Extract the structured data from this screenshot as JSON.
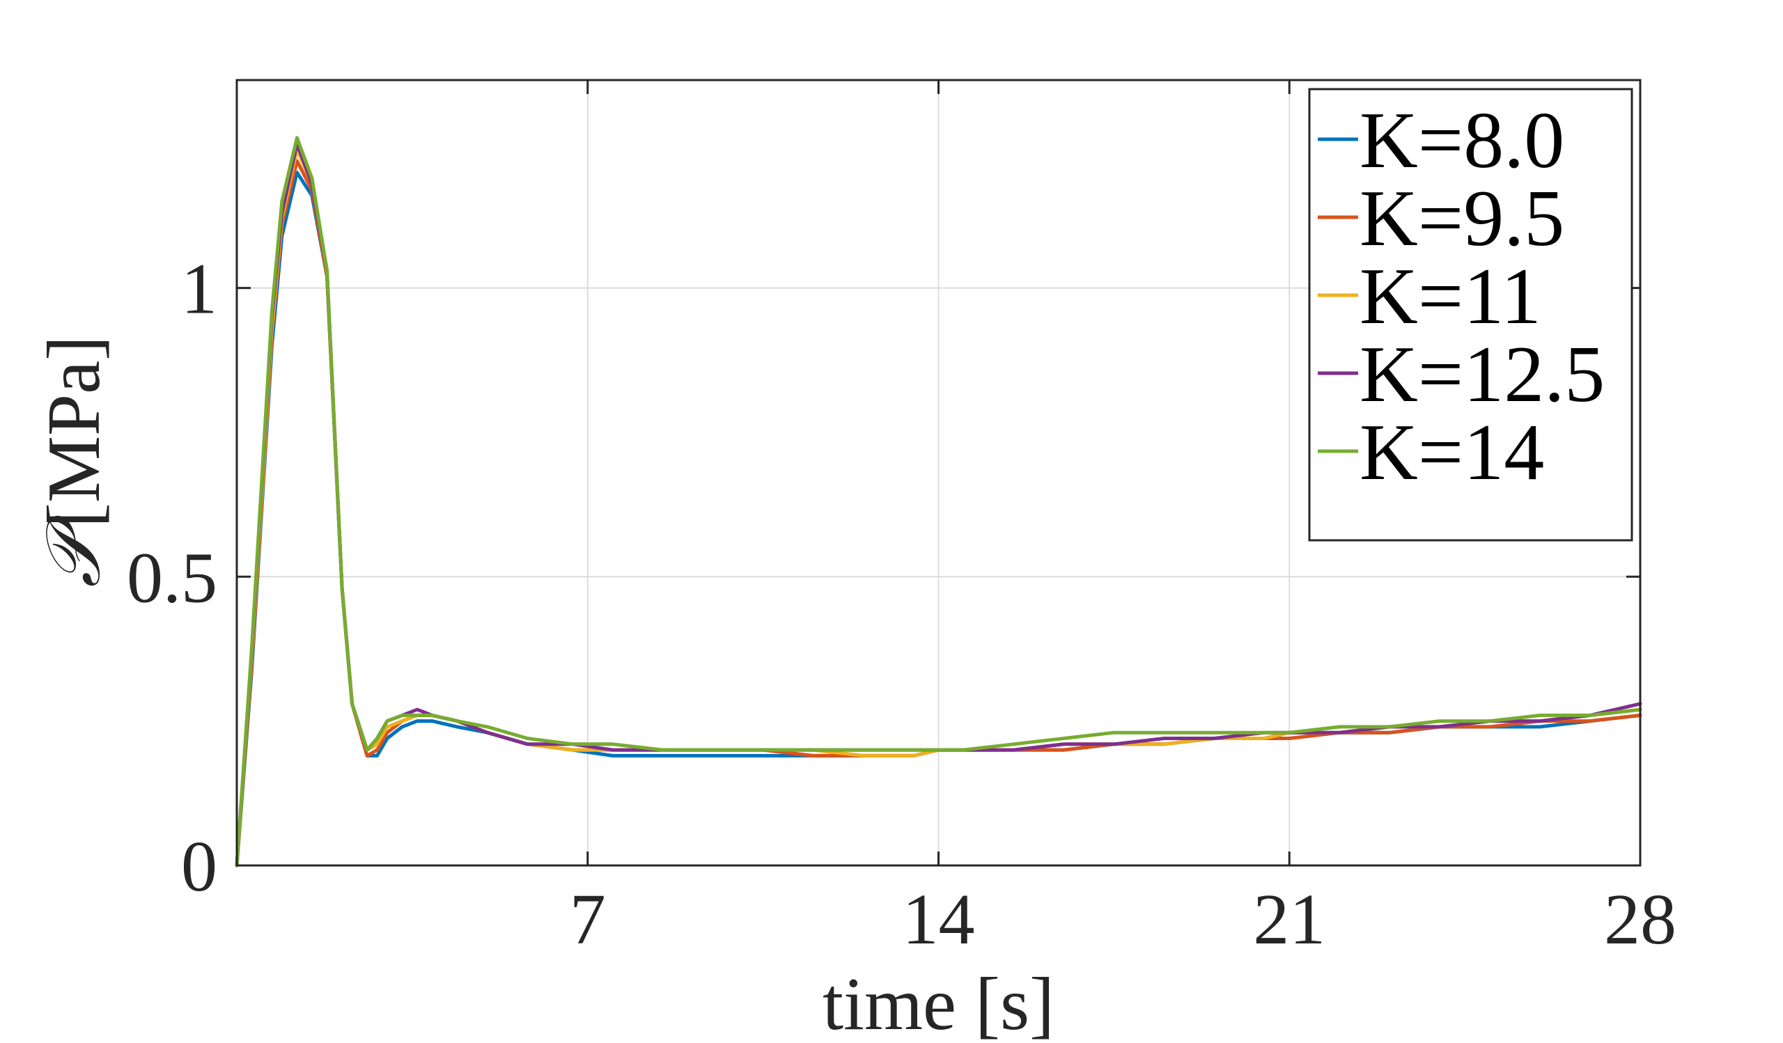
{
  "chart_data": {
    "type": "line",
    "title": "",
    "xlabel": "time [s]",
    "ylabel_symbol": "𝒫",
    "ylabel_unit": "[MPa]",
    "xlim": [
      0,
      28
    ],
    "ylim": [
      0,
      1.36
    ],
    "xticks": [
      7,
      14,
      21,
      28
    ],
    "xtick_labels": [
      "7",
      "14",
      "21",
      "28"
    ],
    "yticks": [
      0,
      0.5,
      1
    ],
    "ytick_labels": [
      "0",
      "0.5",
      "1"
    ],
    "grid": true,
    "legend_position": "top-right",
    "x": [
      0,
      0.3,
      0.5,
      0.7,
      0.9,
      1.2,
      1.5,
      1.8,
      2.1,
      2.3,
      2.6,
      2.8,
      3.0,
      3.3,
      3.6,
      3.9,
      4.4,
      5.0,
      5.8,
      6.7,
      7.5,
      8.5,
      9.5,
      10.5,
      11.5,
      12.5,
      13.5,
      14.0,
      14.5,
      15.5,
      16.5,
      17.5,
      18.5,
      19.5,
      20.5,
      21.0,
      22.0,
      23.0,
      24.0,
      25.0,
      26.0,
      27.0,
      28.0
    ],
    "series": [
      {
        "name": "K=8.0",
        "color": "#0072BD",
        "values": [
          0,
          0.34,
          0.62,
          0.9,
          1.09,
          1.2,
          1.16,
          1.02,
          0.48,
          0.28,
          0.19,
          0.19,
          0.22,
          0.24,
          0.25,
          0.25,
          0.24,
          0.23,
          0.21,
          0.2,
          0.19,
          0.19,
          0.19,
          0.19,
          0.19,
          0.19,
          0.19,
          0.2,
          0.2,
          0.2,
          0.2,
          0.21,
          0.21,
          0.22,
          0.22,
          0.23,
          0.23,
          0.23,
          0.24,
          0.24,
          0.24,
          0.25,
          0.26
        ]
      },
      {
        "name": "K=9.5",
        "color": "#D95319",
        "values": [
          0,
          0.35,
          0.63,
          0.92,
          1.11,
          1.22,
          1.17,
          1.02,
          0.48,
          0.28,
          0.19,
          0.2,
          0.23,
          0.25,
          0.26,
          0.26,
          0.25,
          0.23,
          0.21,
          0.2,
          0.2,
          0.2,
          0.2,
          0.2,
          0.19,
          0.19,
          0.19,
          0.2,
          0.2,
          0.2,
          0.2,
          0.21,
          0.21,
          0.22,
          0.22,
          0.22,
          0.23,
          0.23,
          0.24,
          0.24,
          0.25,
          0.25,
          0.26
        ]
      },
      {
        "name": "K=11",
        "color": "#EDB120",
        "values": [
          0,
          0.36,
          0.64,
          0.93,
          1.12,
          1.24,
          1.18,
          1.03,
          0.48,
          0.28,
          0.2,
          0.21,
          0.24,
          0.25,
          0.26,
          0.26,
          0.25,
          0.23,
          0.21,
          0.2,
          0.2,
          0.2,
          0.2,
          0.2,
          0.2,
          0.19,
          0.19,
          0.2,
          0.2,
          0.2,
          0.21,
          0.21,
          0.21,
          0.22,
          0.22,
          0.23,
          0.23,
          0.24,
          0.24,
          0.25,
          0.25,
          0.26,
          0.27
        ]
      },
      {
        "name": "K=12.5",
        "color": "#7E2F8E",
        "values": [
          0,
          0.37,
          0.66,
          0.95,
          1.13,
          1.25,
          1.18,
          1.03,
          0.48,
          0.28,
          0.2,
          0.22,
          0.25,
          0.26,
          0.27,
          0.26,
          0.25,
          0.23,
          0.21,
          0.21,
          0.2,
          0.2,
          0.2,
          0.2,
          0.2,
          0.2,
          0.2,
          0.2,
          0.2,
          0.2,
          0.21,
          0.21,
          0.22,
          0.22,
          0.23,
          0.23,
          0.23,
          0.24,
          0.24,
          0.25,
          0.25,
          0.26,
          0.28
        ]
      },
      {
        "name": "K=14",
        "color": "#77AC30",
        "values": [
          0,
          0.38,
          0.67,
          0.96,
          1.15,
          1.26,
          1.19,
          1.03,
          0.48,
          0.28,
          0.2,
          0.22,
          0.25,
          0.26,
          0.26,
          0.26,
          0.25,
          0.24,
          0.22,
          0.21,
          0.21,
          0.2,
          0.2,
          0.2,
          0.2,
          0.2,
          0.2,
          0.2,
          0.2,
          0.21,
          0.22,
          0.23,
          0.23,
          0.23,
          0.23,
          0.23,
          0.24,
          0.24,
          0.25,
          0.25,
          0.26,
          0.26,
          0.27
        ]
      }
    ]
  }
}
